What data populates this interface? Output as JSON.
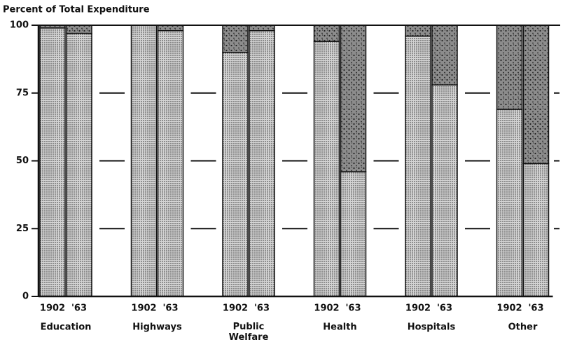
{
  "chart_data": {
    "type": "grouped_stacked_bar",
    "title": "Percent of Total Expenditure",
    "categories": [
      "Education",
      "Highways",
      "Public Welfare",
      "Health",
      "Hospitals",
      "Other"
    ],
    "segment_colors": [
      "#d4d4d4",
      "#8c8c8c"
    ],
    "series": [
      {
        "name": "1902",
        "segments": [
          [
            99,
            1
          ],
          [
            100,
            0
          ],
          [
            90,
            10
          ],
          [
            94,
            6
          ],
          [
            96,
            4
          ],
          [
            69,
            31
          ]
        ]
      },
      {
        "name": "'63",
        "segments": [
          [
            97,
            3
          ],
          [
            98,
            2
          ],
          [
            98,
            2
          ],
          [
            46,
            54
          ],
          [
            78,
            22
          ],
          [
            49,
            51
          ]
        ]
      }
    ],
    "ylim": [
      0,
      100
    ],
    "yticks": [
      0,
      25,
      50,
      75,
      100
    ]
  }
}
